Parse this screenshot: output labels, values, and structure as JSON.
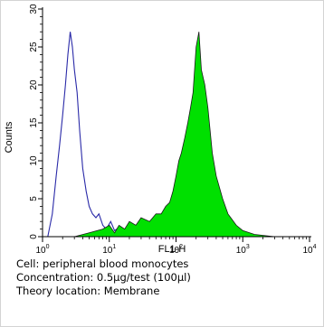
{
  "chart_data": {
    "type": "histogram",
    "xlabel": "FL1-H",
    "ylabel": "Counts",
    "xscale": "log",
    "xlim": [
      1,
      10000
    ],
    "ylim": [
      0,
      30
    ],
    "x_ticks": [
      {
        "value": 1,
        "base": "10",
        "exp": "0"
      },
      {
        "value": 10,
        "base": "10",
        "exp": "1"
      },
      {
        "value": 100,
        "base": "10",
        "exp": "2"
      },
      {
        "value": 1000,
        "base": "10",
        "exp": "3"
      },
      {
        "value": 10000,
        "base": "10",
        "exp": "4"
      }
    ],
    "y_ticks": [
      "0",
      "5",
      "10",
      "15",
      "20",
      "25",
      "30"
    ],
    "series": [
      {
        "style": "outline",
        "color": "#2a2aa8",
        "x": [
          1.2,
          1.4,
          1.6,
          1.8,
          2.0,
          2.2,
          2.4,
          2.6,
          2.8,
          3.0,
          3.3,
          3.6,
          4.0,
          4.5,
          5.0,
          5.6,
          6.3,
          7.0,
          8.0,
          9.0,
          10.5,
          12.0,
          14.0,
          16.0,
          20.0,
          25.0
        ],
        "y": [
          0,
          3,
          8,
          12,
          16,
          20,
          24,
          27,
          25,
          22,
          19,
          14,
          9,
          6,
          4,
          3,
          2.5,
          3,
          1.5,
          1,
          2,
          0.8,
          1.2,
          0.5,
          0.8,
          0
        ]
      },
      {
        "style": "filled",
        "color": "#00e000",
        "x": [
          3,
          5,
          8,
          10,
          12,
          14,
          17,
          20,
          25,
          30,
          40,
          50,
          60,
          70,
          80,
          90,
          100,
          110,
          120,
          135,
          150,
          165,
          180,
          200,
          220,
          240,
          270,
          300,
          350,
          400,
          500,
          600,
          800,
          1000,
          1500,
          3000
        ],
        "y": [
          0,
          0.5,
          1,
          1.5,
          0.5,
          1.5,
          1,
          2,
          1.5,
          2.5,
          2,
          3,
          3,
          4,
          4.5,
          6,
          8,
          10,
          11,
          13,
          15,
          17,
          19,
          25,
          27,
          22,
          20,
          17,
          11,
          8,
          5,
          3,
          1.5,
          0.8,
          0.3,
          0
        ]
      }
    ]
  },
  "caption": {
    "cell": "Cell: peripheral blood monocytes",
    "concentration": "Concentration: 0.5µg/test (100µl)",
    "location": "Theory location: Membrane"
  }
}
